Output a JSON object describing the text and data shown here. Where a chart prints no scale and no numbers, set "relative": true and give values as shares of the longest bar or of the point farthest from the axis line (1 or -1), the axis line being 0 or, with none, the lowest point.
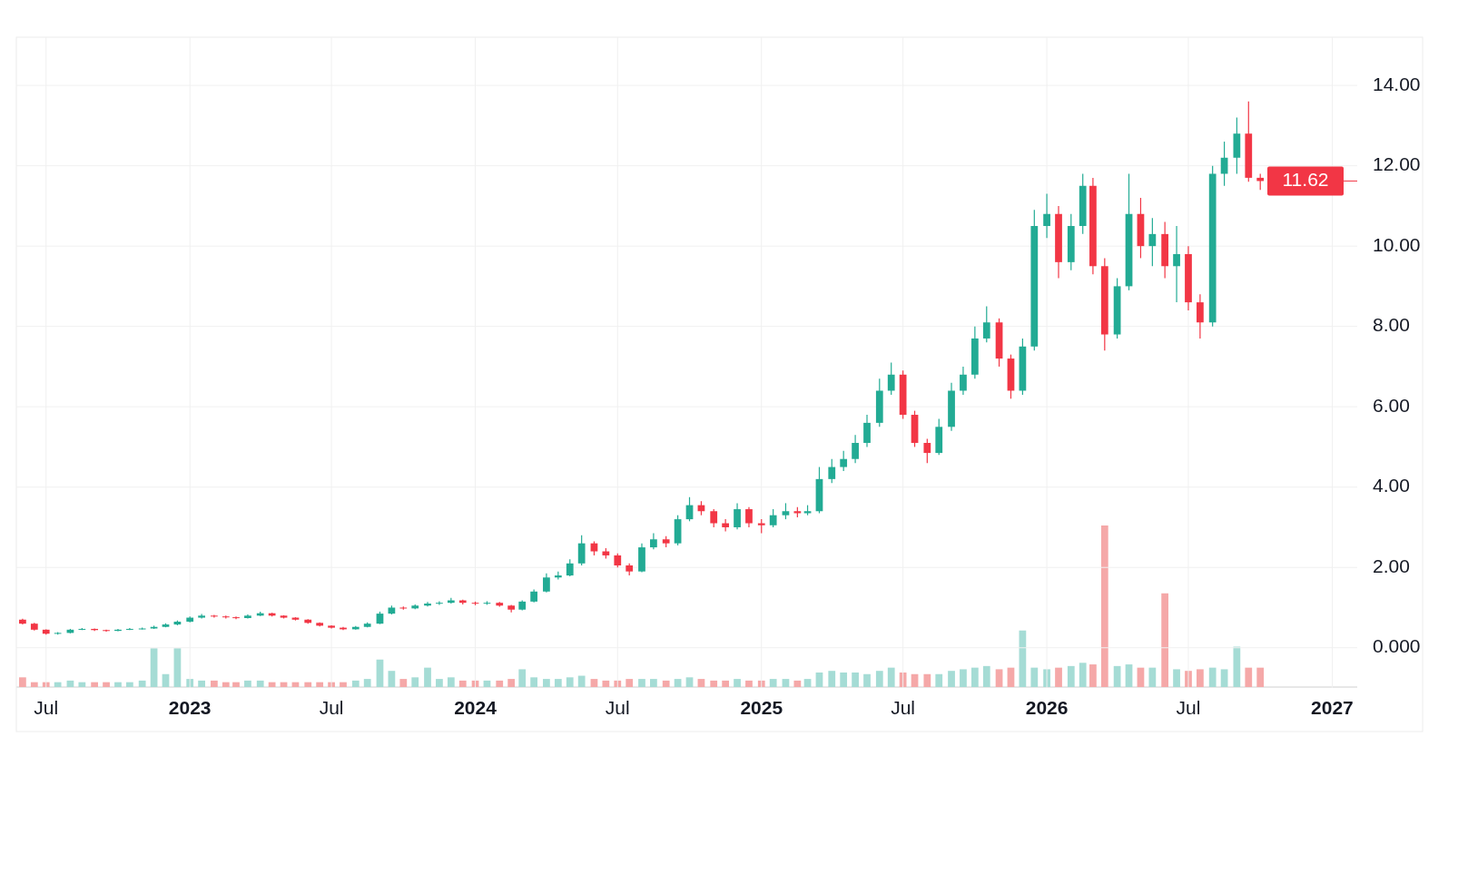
{
  "chart_data": [
    {
      "type": "candlestick",
      "x": [
        "2022-06-01",
        "2022-06-16",
        "2022-07-01",
        "2022-07-16",
        "2022-08-01",
        "2022-08-16",
        "2022-09-01",
        "2022-09-16",
        "2022-10-01",
        "2022-10-16",
        "2022-11-01",
        "2022-11-16",
        "2022-12-01",
        "2022-12-16",
        "2023-01-01",
        "2023-01-16",
        "2023-02-01",
        "2023-02-16",
        "2023-03-01",
        "2023-03-16",
        "2023-04-01",
        "2023-04-16",
        "2023-05-01",
        "2023-05-16",
        "2023-06-01",
        "2023-06-16",
        "2023-07-01",
        "2023-07-16",
        "2023-08-01",
        "2023-08-16",
        "2023-09-01",
        "2023-09-16",
        "2023-10-01",
        "2023-10-16",
        "2023-11-01",
        "2023-11-16",
        "2023-12-01",
        "2023-12-16",
        "2024-01-01",
        "2024-01-16",
        "2024-02-01",
        "2024-02-16",
        "2024-03-01",
        "2024-03-16",
        "2024-04-01",
        "2024-04-16",
        "2024-05-01",
        "2024-05-16",
        "2024-06-01",
        "2024-06-16",
        "2024-07-01",
        "2024-07-16",
        "2024-08-01",
        "2024-08-16",
        "2024-09-01",
        "2024-09-16",
        "2024-10-01",
        "2024-10-16",
        "2024-11-01",
        "2024-11-16",
        "2024-12-01",
        "2024-12-16",
        "2025-01-01",
        "2025-01-16",
        "2025-02-01",
        "2025-02-16",
        "2025-03-01",
        "2025-03-16",
        "2025-04-01",
        "2025-04-16",
        "2025-05-01",
        "2025-05-16",
        "2025-06-01",
        "2025-06-16",
        "2025-07-01",
        "2025-07-16",
        "2025-08-01",
        "2025-08-16",
        "2025-09-01",
        "2025-09-16",
        "2025-10-01",
        "2025-10-16",
        "2025-11-01",
        "2025-11-16",
        "2025-12-01",
        "2025-12-16",
        "2026-01-01",
        "2026-01-16",
        "2026-02-01",
        "2026-02-16",
        "2026-03-01",
        "2026-03-16",
        "2026-04-01",
        "2026-04-16",
        "2026-05-01",
        "2026-05-16",
        "2026-06-01",
        "2026-06-16",
        "2026-07-01",
        "2026-07-16",
        "2026-08-01",
        "2026-08-16",
        "2026-09-01",
        "2026-09-16",
        "2026-10-01"
      ],
      "ohlc": [
        [
          0.7,
          0.72,
          0.58,
          0.6
        ],
        [
          0.6,
          0.62,
          0.43,
          0.45
        ],
        [
          0.45,
          0.46,
          0.33,
          0.35
        ],
        [
          0.35,
          0.39,
          0.33,
          0.37
        ],
        [
          0.37,
          0.47,
          0.36,
          0.45
        ],
        [
          0.45,
          0.49,
          0.44,
          0.47
        ],
        [
          0.47,
          0.48,
          0.42,
          0.44
        ],
        [
          0.44,
          0.45,
          0.4,
          0.42
        ],
        [
          0.42,
          0.47,
          0.41,
          0.45
        ],
        [
          0.45,
          0.49,
          0.44,
          0.47
        ],
        [
          0.47,
          0.5,
          0.46,
          0.48
        ],
        [
          0.48,
          0.55,
          0.47,
          0.52
        ],
        [
          0.52,
          0.61,
          0.51,
          0.58
        ],
        [
          0.58,
          0.68,
          0.56,
          0.65
        ],
        [
          0.65,
          0.78,
          0.63,
          0.75
        ],
        [
          0.75,
          0.84,
          0.73,
          0.8
        ],
        [
          0.8,
          0.82,
          0.75,
          0.78
        ],
        [
          0.78,
          0.8,
          0.73,
          0.76
        ],
        [
          0.76,
          0.78,
          0.71,
          0.74
        ],
        [
          0.74,
          0.83,
          0.73,
          0.8
        ],
        [
          0.8,
          0.9,
          0.79,
          0.86
        ],
        [
          0.86,
          0.87,
          0.78,
          0.8
        ],
        [
          0.8,
          0.81,
          0.73,
          0.75
        ],
        [
          0.75,
          0.76,
          0.68,
          0.7
        ],
        [
          0.7,
          0.71,
          0.6,
          0.62
        ],
        [
          0.62,
          0.63,
          0.53,
          0.55
        ],
        [
          0.55,
          0.56,
          0.48,
          0.5
        ],
        [
          0.5,
          0.52,
          0.44,
          0.46
        ],
        [
          0.46,
          0.54,
          0.45,
          0.52
        ],
        [
          0.52,
          0.63,
          0.51,
          0.6
        ],
        [
          0.6,
          0.9,
          0.59,
          0.85
        ],
        [
          0.85,
          1.05,
          0.83,
          1.0
        ],
        [
          1.0,
          1.03,
          0.95,
          0.98
        ],
        [
          0.98,
          1.08,
          0.96,
          1.05
        ],
        [
          1.05,
          1.14,
          1.03,
          1.1
        ],
        [
          1.1,
          1.16,
          1.07,
          1.12
        ],
        [
          1.12,
          1.24,
          1.1,
          1.18
        ],
        [
          1.18,
          1.2,
          1.08,
          1.12
        ],
        [
          1.12,
          1.15,
          1.06,
          1.1
        ],
        [
          1.1,
          1.16,
          1.07,
          1.12
        ],
        [
          1.12,
          1.14,
          1.02,
          1.05
        ],
        [
          1.05,
          1.07,
          0.88,
          0.95
        ],
        [
          0.95,
          1.18,
          0.93,
          1.15
        ],
        [
          1.15,
          1.45,
          1.13,
          1.4
        ],
        [
          1.4,
          1.85,
          1.38,
          1.75
        ],
        [
          1.75,
          1.9,
          1.7,
          1.8
        ],
        [
          1.8,
          2.2,
          1.78,
          2.1
        ],
        [
          2.1,
          2.8,
          2.05,
          2.6
        ],
        [
          2.6,
          2.65,
          2.3,
          2.4
        ],
        [
          2.4,
          2.48,
          2.22,
          2.3
        ],
        [
          2.3,
          2.35,
          2.0,
          2.05
        ],
        [
          2.05,
          2.1,
          1.8,
          1.9
        ],
        [
          1.9,
          2.6,
          1.88,
          2.5
        ],
        [
          2.5,
          2.85,
          2.45,
          2.7
        ],
        [
          2.7,
          2.78,
          2.5,
          2.6
        ],
        [
          2.6,
          3.3,
          2.55,
          3.2
        ],
        [
          3.2,
          3.75,
          3.15,
          3.55
        ],
        [
          3.55,
          3.65,
          3.3,
          3.4
        ],
        [
          3.4,
          3.45,
          3.0,
          3.1
        ],
        [
          3.1,
          3.2,
          2.9,
          3.0
        ],
        [
          3.0,
          3.6,
          2.95,
          3.45
        ],
        [
          3.45,
          3.5,
          3.0,
          3.1
        ],
        [
          3.1,
          3.2,
          2.85,
          3.05
        ],
        [
          3.05,
          3.45,
          3.0,
          3.3
        ],
        [
          3.3,
          3.6,
          3.2,
          3.4
        ],
        [
          3.4,
          3.5,
          3.25,
          3.35
        ],
        [
          3.35,
          3.55,
          3.3,
          3.4
        ],
        [
          3.4,
          4.5,
          3.35,
          4.2
        ],
        [
          4.2,
          4.7,
          4.1,
          4.5
        ],
        [
          4.5,
          4.9,
          4.4,
          4.7
        ],
        [
          4.7,
          5.3,
          4.6,
          5.1
        ],
        [
          5.1,
          5.8,
          5.0,
          5.6
        ],
        [
          5.6,
          6.7,
          5.5,
          6.4
        ],
        [
          6.4,
          7.1,
          6.3,
          6.8
        ],
        [
          6.8,
          6.9,
          5.7,
          5.8
        ],
        [
          5.8,
          5.9,
          5.0,
          5.1
        ],
        [
          5.1,
          5.2,
          4.6,
          4.85
        ],
        [
          4.85,
          5.7,
          4.8,
          5.5
        ],
        [
          5.5,
          6.6,
          5.4,
          6.4
        ],
        [
          6.4,
          7.0,
          6.3,
          6.8
        ],
        [
          6.8,
          8.0,
          6.7,
          7.7
        ],
        [
          7.7,
          8.5,
          7.6,
          8.1
        ],
        [
          8.1,
          8.2,
          7.0,
          7.2
        ],
        [
          7.2,
          7.3,
          6.2,
          6.4
        ],
        [
          6.4,
          7.7,
          6.3,
          7.5
        ],
        [
          7.5,
          10.9,
          7.4,
          10.5
        ],
        [
          10.5,
          11.3,
          10.2,
          10.8
        ],
        [
          10.8,
          11.0,
          9.2,
          9.6
        ],
        [
          9.6,
          10.8,
          9.4,
          10.5
        ],
        [
          10.5,
          11.8,
          10.3,
          11.5
        ],
        [
          11.5,
          11.7,
          9.3,
          9.5
        ],
        [
          9.5,
          9.7,
          7.4,
          7.8
        ],
        [
          7.8,
          9.2,
          7.7,
          9.0
        ],
        [
          9.0,
          11.8,
          8.9,
          10.8
        ],
        [
          10.8,
          11.2,
          9.7,
          10.0
        ],
        [
          10.0,
          10.7,
          9.5,
          10.3
        ],
        [
          10.3,
          10.6,
          9.2,
          9.5
        ],
        [
          9.5,
          10.5,
          8.6,
          9.8
        ],
        [
          9.8,
          10.0,
          8.4,
          8.6
        ],
        [
          8.6,
          8.8,
          7.7,
          8.1
        ],
        [
          8.1,
          12.0,
          8.0,
          11.8
        ],
        [
          11.8,
          12.6,
          11.5,
          12.2
        ],
        [
          12.2,
          13.2,
          11.8,
          12.8
        ],
        [
          12.8,
          13.6,
          11.6,
          11.7
        ],
        [
          11.7,
          11.8,
          11.4,
          11.62
        ]
      ],
      "colors": [
        "#f23645",
        "#f23645",
        "#f23645",
        "#22ab94",
        "#22ab94",
        "#22ab94",
        "#f23645",
        "#f23645",
        "#22ab94",
        "#22ab94",
        "#22ab94",
        "#22ab94",
        "#22ab94",
        "#22ab94",
        "#22ab94",
        "#22ab94",
        "#f23645",
        "#f23645",
        "#f23645",
        "#22ab94",
        "#22ab94",
        "#f23645",
        "#f23645",
        "#f23645",
        "#f23645",
        "#f23645",
        "#f23645",
        "#f23645",
        "#22ab94",
        "#22ab94",
        "#22ab94",
        "#22ab94",
        "#f23645",
        "#22ab94",
        "#22ab94",
        "#22ab94",
        "#22ab94",
        "#f23645",
        "#f23645",
        "#22ab94",
        "#f23645",
        "#f23645",
        "#22ab94",
        "#22ab94",
        "#22ab94",
        "#22ab94",
        "#22ab94",
        "#22ab94",
        "#f23645",
        "#f23645",
        "#f23645",
        "#f23645",
        "#22ab94",
        "#22ab94",
        "#f23645",
        "#22ab94",
        "#22ab94",
        "#f23645",
        "#f23645",
        "#f23645",
        "#22ab94",
        "#f23645",
        "#f23645",
        "#22ab94",
        "#22ab94",
        "#f23645",
        "#22ab94",
        "#22ab94",
        "#22ab94",
        "#22ab94",
        "#22ab94",
        "#22ab94",
        "#22ab94",
        "#22ab94",
        "#f23645",
        "#f23645",
        "#f23645",
        "#22ab94",
        "#22ab94",
        "#22ab94",
        "#22ab94",
        "#22ab94",
        "#f23645",
        "#f23645",
        "#22ab94",
        "#22ab94",
        "#22ab94",
        "#f23645",
        "#22ab94",
        "#22ab94",
        "#f23645",
        "#f23645",
        "#22ab94",
        "#22ab94",
        "#f23645",
        "#22ab94",
        "#f23645",
        "#22ab94",
        "#f23645",
        "#f23645",
        "#22ab94",
        "#22ab94",
        "#22ab94",
        "#f23645",
        "#f23645"
      ],
      "xlim": [
        "2022-05-24",
        "2027-02-02"
      ],
      "xticks": [
        {
          "value": "2022-07-01",
          "label": null
        },
        {
          "value": "2023-01-01",
          "label": null
        },
        {
          "value": "2023-07-01",
          "label": null
        },
        {
          "value": "2024-01-01",
          "label": null
        },
        {
          "value": "2024-07-01",
          "label": null
        },
        {
          "value": "2025-01-01",
          "label": null
        },
        {
          "value": "2025-07-01",
          "label": null
        },
        {
          "value": "2026-01-01",
          "label": null
        },
        {
          "value": "2026-07-01",
          "label": null
        },
        {
          "value": "2027-01-01",
          "label": null
        }
      ],
      "ylim": [
        -1.0,
        15.2
      ],
      "yticks": [
        {
          "value": 0,
          "label": "0.000"
        },
        {
          "value": 2,
          "label": "2.00"
        },
        {
          "value": 4,
          "label": "4.00"
        },
        {
          "value": 6,
          "label": "6.00"
        },
        {
          "value": 8,
          "label": "8.00"
        },
        {
          "value": 10,
          "label": "10.00"
        },
        {
          "value": 12,
          "label": "12.00"
        },
        {
          "value": 14,
          "label": "14.00"
        }
      ],
      "grid": true,
      "tick_labels": "y",
      "ref_lines": [
        {
          "axis": "y",
          "value": 11.62,
          "label": "11.62",
          "color": "#f23645"
        }
      ]
    },
    {
      "type": "bar",
      "relative": true,
      "tick_labels": "x",
      "xlim": [
        "2022-05-24",
        "2027-02-02"
      ],
      "xticks": [
        {
          "value": "2022-07-01",
          "label": "Jul"
        },
        {
          "value": "2023-01-01",
          "label": "2023"
        },
        {
          "value": "2023-07-01",
          "label": "Jul"
        },
        {
          "value": "2024-01-01",
          "label": "2024"
        },
        {
          "value": "2024-07-01",
          "label": "Jul"
        },
        {
          "value": "2025-01-01",
          "label": "2025"
        },
        {
          "value": "2025-07-01",
          "label": "Jul"
        },
        {
          "value": "2026-01-01",
          "label": "2026"
        },
        {
          "value": "2026-07-01",
          "label": "Jul"
        },
        {
          "value": "2027-01-01",
          "label": "2027"
        }
      ],
      "x": [
        "2022-06-01",
        "2022-06-16",
        "2022-07-01",
        "2022-07-16",
        "2022-08-01",
        "2022-08-16",
        "2022-09-01",
        "2022-09-16",
        "2022-10-01",
        "2022-10-16",
        "2022-11-01",
        "2022-11-16",
        "2022-12-01",
        "2022-12-16",
        "2023-01-01",
        "2023-01-16",
        "2023-02-01",
        "2023-02-16",
        "2023-03-01",
        "2023-03-16",
        "2023-04-01",
        "2023-04-16",
        "2023-05-01",
        "2023-05-16",
        "2023-06-01",
        "2023-06-16",
        "2023-07-01",
        "2023-07-16",
        "2023-08-01",
        "2023-08-16",
        "2023-09-01",
        "2023-09-16",
        "2023-10-01",
        "2023-10-16",
        "2023-11-01",
        "2023-11-16",
        "2023-12-01",
        "2023-12-16",
        "2024-01-01",
        "2024-01-16",
        "2024-02-01",
        "2024-02-16",
        "2024-03-01",
        "2024-03-16",
        "2024-04-01",
        "2024-04-16",
        "2024-05-01",
        "2024-05-16",
        "2024-06-01",
        "2024-06-16",
        "2024-07-01",
        "2024-07-16",
        "2024-08-01",
        "2024-08-16",
        "2024-09-01",
        "2024-09-16",
        "2024-10-01",
        "2024-10-16",
        "2024-11-01",
        "2024-11-16",
        "2024-12-01",
        "2024-12-16",
        "2025-01-01",
        "2025-01-16",
        "2025-02-01",
        "2025-02-16",
        "2025-03-01",
        "2025-03-16",
        "2025-04-01",
        "2025-04-16",
        "2025-05-01",
        "2025-05-16",
        "2025-06-01",
        "2025-06-16",
        "2025-07-01",
        "2025-07-16",
        "2025-08-01",
        "2025-08-16",
        "2025-09-01",
        "2025-09-16",
        "2025-10-01",
        "2025-10-16",
        "2025-11-01",
        "2025-11-16",
        "2025-12-01",
        "2025-12-16",
        "2026-01-01",
        "2026-01-16",
        "2026-02-01",
        "2026-02-16",
        "2026-03-01",
        "2026-03-16",
        "2026-04-01",
        "2026-04-16",
        "2026-05-01",
        "2026-05-16",
        "2026-06-01",
        "2026-06-16",
        "2026-07-01",
        "2026-07-16",
        "2026-08-01",
        "2026-08-16",
        "2026-09-01",
        "2026-09-16",
        "2026-10-01"
      ],
      "values": [
        0.06,
        0.03,
        0.03,
        0.03,
        0.04,
        0.03,
        0.03,
        0.03,
        0.03,
        0.03,
        0.04,
        0.24,
        0.08,
        0.24,
        0.05,
        0.04,
        0.04,
        0.03,
        0.03,
        0.04,
        0.04,
        0.03,
        0.03,
        0.03,
        0.03,
        0.03,
        0.03,
        0.03,
        0.04,
        0.05,
        0.17,
        0.1,
        0.05,
        0.06,
        0.12,
        0.05,
        0.06,
        0.04,
        0.04,
        0.04,
        0.04,
        0.05,
        0.11,
        0.06,
        0.05,
        0.05,
        0.06,
        0.07,
        0.05,
        0.04,
        0.04,
        0.05,
        0.05,
        0.05,
        0.04,
        0.05,
        0.06,
        0.05,
        0.04,
        0.04,
        0.05,
        0.04,
        0.04,
        0.05,
        0.05,
        0.04,
        0.05,
        0.09,
        0.1,
        0.09,
        0.09,
        0.08,
        0.1,
        0.12,
        0.09,
        0.08,
        0.08,
        0.08,
        0.1,
        0.11,
        0.12,
        0.13,
        0.11,
        0.12,
        0.35,
        0.12,
        0.11,
        0.12,
        0.13,
        0.15,
        0.14,
        1.0,
        0.13,
        0.14,
        0.12,
        0.12,
        0.58,
        0.11,
        0.1,
        0.11,
        0.12,
        0.11,
        0.25,
        0.12,
        0.12
      ],
      "colors": [
        "#f5a8a8",
        "#f5a8a8",
        "#f5a8a8",
        "#a5dcd5",
        "#a5dcd5",
        "#a5dcd5",
        "#f5a8a8",
        "#f5a8a8",
        "#a5dcd5",
        "#a5dcd5",
        "#a5dcd5",
        "#a5dcd5",
        "#a5dcd5",
        "#a5dcd5",
        "#a5dcd5",
        "#a5dcd5",
        "#f5a8a8",
        "#f5a8a8",
        "#f5a8a8",
        "#a5dcd5",
        "#a5dcd5",
        "#f5a8a8",
        "#f5a8a8",
        "#f5a8a8",
        "#f5a8a8",
        "#f5a8a8",
        "#f5a8a8",
        "#f5a8a8",
        "#a5dcd5",
        "#a5dcd5",
        "#a5dcd5",
        "#a5dcd5",
        "#f5a8a8",
        "#a5dcd5",
        "#a5dcd5",
        "#a5dcd5",
        "#a5dcd5",
        "#f5a8a8",
        "#f5a8a8",
        "#a5dcd5",
        "#f5a8a8",
        "#f5a8a8",
        "#a5dcd5",
        "#a5dcd5",
        "#a5dcd5",
        "#a5dcd5",
        "#a5dcd5",
        "#a5dcd5",
        "#f5a8a8",
        "#f5a8a8",
        "#f5a8a8",
        "#f5a8a8",
        "#a5dcd5",
        "#a5dcd5",
        "#f5a8a8",
        "#a5dcd5",
        "#a5dcd5",
        "#f5a8a8",
        "#f5a8a8",
        "#f5a8a8",
        "#a5dcd5",
        "#f5a8a8",
        "#f5a8a8",
        "#a5dcd5",
        "#a5dcd5",
        "#f5a8a8",
        "#a5dcd5",
        "#a5dcd5",
        "#a5dcd5",
        "#a5dcd5",
        "#a5dcd5",
        "#a5dcd5",
        "#a5dcd5",
        "#a5dcd5",
        "#f5a8a8",
        "#f5a8a8",
        "#f5a8a8",
        "#a5dcd5",
        "#a5dcd5",
        "#a5dcd5",
        "#a5dcd5",
        "#a5dcd5",
        "#f5a8a8",
        "#f5a8a8",
        "#a5dcd5",
        "#a5dcd5",
        "#a5dcd5",
        "#f5a8a8",
        "#a5dcd5",
        "#a5dcd5",
        "#f5a8a8",
        "#f5a8a8",
        "#a5dcd5",
        "#a5dcd5",
        "#f5a8a8",
        "#a5dcd5",
        "#f5a8a8",
        "#a5dcd5",
        "#f5a8a8",
        "#f5a8a8",
        "#a5dcd5",
        "#a5dcd5",
        "#a5dcd5",
        "#f5a8a8",
        "#f5a8a8"
      ]
    }
  ]
}
